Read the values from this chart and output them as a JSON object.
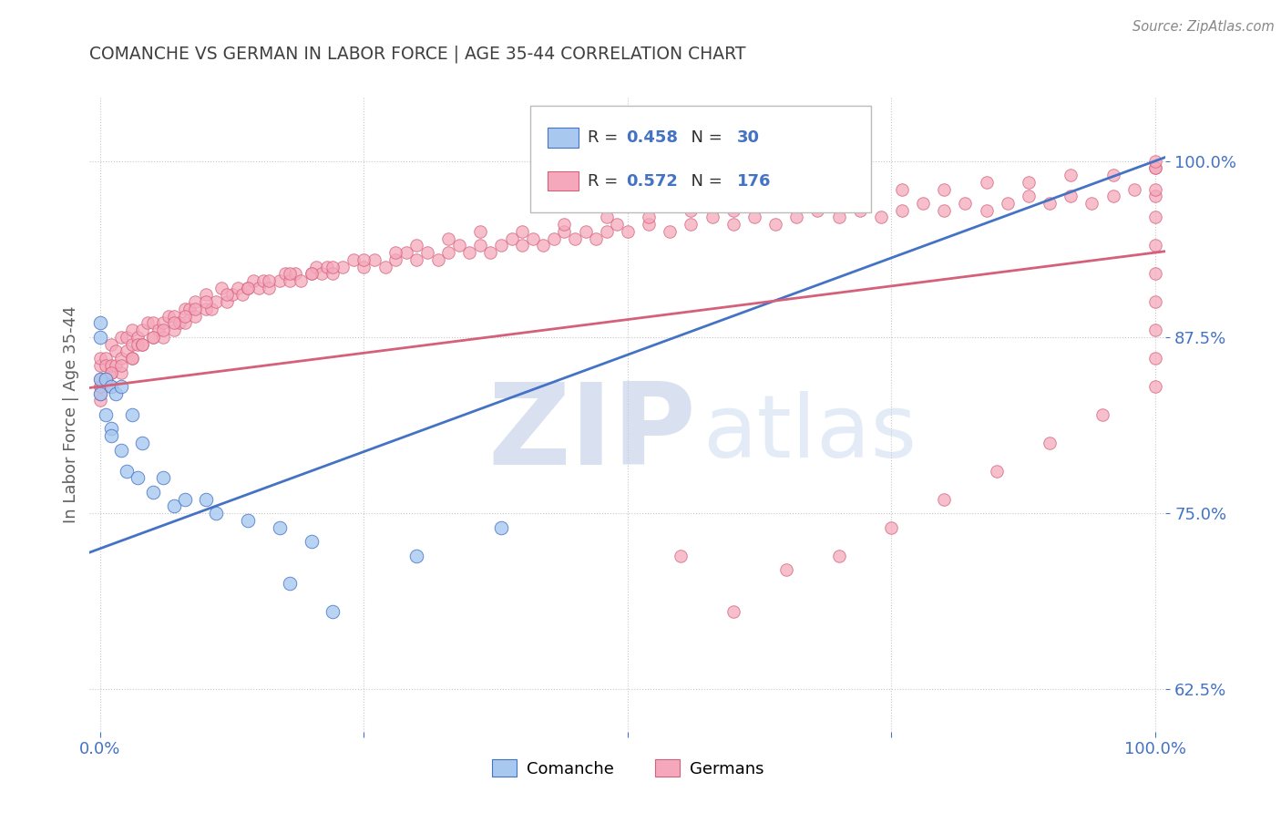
{
  "title": "COMANCHE VS GERMAN IN LABOR FORCE | AGE 35-44 CORRELATION CHART",
  "source": "Source: ZipAtlas.com",
  "ylabel": "In Labor Force | Age 35-44",
  "watermark_zip": "ZIP",
  "watermark_atlas": "atlas",
  "xlim": [
    -0.01,
    1.01
  ],
  "ylim": [
    0.595,
    1.045
  ],
  "xtick_labels": [
    "0.0%",
    "",
    "",
    "",
    "100.0%"
  ],
  "ytick_labels": [
    "62.5%",
    "75.0%",
    "87.5%",
    "100.0%"
  ],
  "ytick_values": [
    0.625,
    0.75,
    0.875,
    1.0
  ],
  "legend_blue_R": "0.458",
  "legend_blue_N": "30",
  "legend_pink_R": "0.572",
  "legend_pink_N": "176",
  "blue_fill": "#A8C8F0",
  "pink_fill": "#F5A8BC",
  "line_blue_color": "#4472C4",
  "line_pink_color": "#D4607A",
  "title_color": "#404040",
  "axis_label_color": "#606060",
  "tick_color": "#4472C4",
  "grid_color": "#C8C8C8",
  "background_color": "#FFFFFF",
  "comanche_x": [
    0.0,
    0.0,
    0.0,
    0.0,
    0.005,
    0.005,
    0.01,
    0.01,
    0.01,
    0.015,
    0.02,
    0.02,
    0.025,
    0.03,
    0.035,
    0.04,
    0.05,
    0.06,
    0.07,
    0.08,
    0.1,
    0.11,
    0.14,
    0.17,
    0.18,
    0.2,
    0.22,
    0.3,
    0.38,
    0.5
  ],
  "comanche_y": [
    0.845,
    0.835,
    0.875,
    0.885,
    0.82,
    0.845,
    0.81,
    0.84,
    0.805,
    0.835,
    0.795,
    0.84,
    0.78,
    0.82,
    0.775,
    0.8,
    0.765,
    0.775,
    0.755,
    0.76,
    0.76,
    0.75,
    0.745,
    0.74,
    0.7,
    0.73,
    0.68,
    0.72,
    0.74,
    1.0
  ],
  "german_x": [
    0.0,
    0.0,
    0.0,
    0.0,
    0.0,
    0.0,
    0.005,
    0.005,
    0.005,
    0.01,
    0.01,
    0.01,
    0.01,
    0.015,
    0.015,
    0.02,
    0.02,
    0.02,
    0.025,
    0.025,
    0.03,
    0.03,
    0.03,
    0.035,
    0.035,
    0.04,
    0.04,
    0.045,
    0.05,
    0.05,
    0.055,
    0.06,
    0.06,
    0.065,
    0.07,
    0.07,
    0.075,
    0.08,
    0.08,
    0.085,
    0.09,
    0.09,
    0.1,
    0.1,
    0.105,
    0.11,
    0.115,
    0.12,
    0.125,
    0.13,
    0.135,
    0.14,
    0.145,
    0.15,
    0.155,
    0.16,
    0.17,
    0.175,
    0.18,
    0.185,
    0.19,
    0.2,
    0.205,
    0.21,
    0.215,
    0.22,
    0.23,
    0.24,
    0.25,
    0.26,
    0.27,
    0.28,
    0.29,
    0.3,
    0.31,
    0.32,
    0.33,
    0.34,
    0.35,
    0.36,
    0.37,
    0.38,
    0.39,
    0.4,
    0.41,
    0.42,
    0.43,
    0.44,
    0.45,
    0.46,
    0.47,
    0.48,
    0.49,
    0.5,
    0.52,
    0.54,
    0.56,
    0.58,
    0.6,
    0.62,
    0.64,
    0.66,
    0.68,
    0.7,
    0.72,
    0.74,
    0.76,
    0.78,
    0.8,
    0.82,
    0.84,
    0.86,
    0.88,
    0.9,
    0.92,
    0.94,
    0.96,
    0.98,
    1.0,
    1.0,
    0.0,
    0.01,
    0.02,
    0.03,
    0.04,
    0.05,
    0.06,
    0.07,
    0.08,
    0.09,
    0.1,
    0.12,
    0.14,
    0.16,
    0.18,
    0.2,
    0.22,
    0.25,
    0.28,
    0.3,
    0.33,
    0.36,
    0.4,
    0.44,
    0.48,
    0.52,
    0.56,
    0.6,
    0.64,
    0.68,
    0.72,
    0.76,
    0.8,
    0.84,
    0.88,
    0.92,
    0.96,
    1.0,
    1.0,
    1.0,
    0.55,
    0.6,
    0.65,
    0.7,
    0.75,
    0.8,
    0.85,
    0.9,
    0.95,
    1.0,
    1.0,
    1.0,
    1.0,
    1.0,
    1.0,
    1.0
  ],
  "german_y": [
    0.84,
    0.83,
    0.845,
    0.855,
    0.835,
    0.86,
    0.845,
    0.86,
    0.855,
    0.85,
    0.855,
    0.87,
    0.84,
    0.865,
    0.855,
    0.86,
    0.875,
    0.85,
    0.865,
    0.875,
    0.87,
    0.88,
    0.86,
    0.875,
    0.87,
    0.88,
    0.87,
    0.885,
    0.875,
    0.885,
    0.88,
    0.885,
    0.875,
    0.89,
    0.88,
    0.89,
    0.885,
    0.895,
    0.885,
    0.895,
    0.89,
    0.9,
    0.895,
    0.905,
    0.895,
    0.9,
    0.91,
    0.9,
    0.905,
    0.91,
    0.905,
    0.91,
    0.915,
    0.91,
    0.915,
    0.91,
    0.915,
    0.92,
    0.915,
    0.92,
    0.915,
    0.92,
    0.925,
    0.92,
    0.925,
    0.92,
    0.925,
    0.93,
    0.925,
    0.93,
    0.925,
    0.93,
    0.935,
    0.93,
    0.935,
    0.93,
    0.935,
    0.94,
    0.935,
    0.94,
    0.935,
    0.94,
    0.945,
    0.94,
    0.945,
    0.94,
    0.945,
    0.95,
    0.945,
    0.95,
    0.945,
    0.95,
    0.955,
    0.95,
    0.955,
    0.95,
    0.955,
    0.96,
    0.955,
    0.96,
    0.955,
    0.96,
    0.965,
    0.96,
    0.965,
    0.96,
    0.965,
    0.97,
    0.965,
    0.97,
    0.965,
    0.97,
    0.975,
    0.97,
    0.975,
    0.97,
    0.975,
    0.98,
    0.975,
    0.98,
    0.84,
    0.85,
    0.855,
    0.86,
    0.87,
    0.875,
    0.88,
    0.885,
    0.89,
    0.895,
    0.9,
    0.905,
    0.91,
    0.915,
    0.92,
    0.92,
    0.925,
    0.93,
    0.935,
    0.94,
    0.945,
    0.95,
    0.95,
    0.955,
    0.96,
    0.96,
    0.965,
    0.965,
    0.97,
    0.975,
    0.975,
    0.98,
    0.98,
    0.985,
    0.985,
    0.99,
    0.99,
    0.995,
    0.995,
    1.0,
    0.72,
    0.68,
    0.71,
    0.72,
    0.74,
    0.76,
    0.78,
    0.8,
    0.82,
    0.84,
    0.86,
    0.88,
    0.9,
    0.92,
    0.94,
    0.96
  ]
}
